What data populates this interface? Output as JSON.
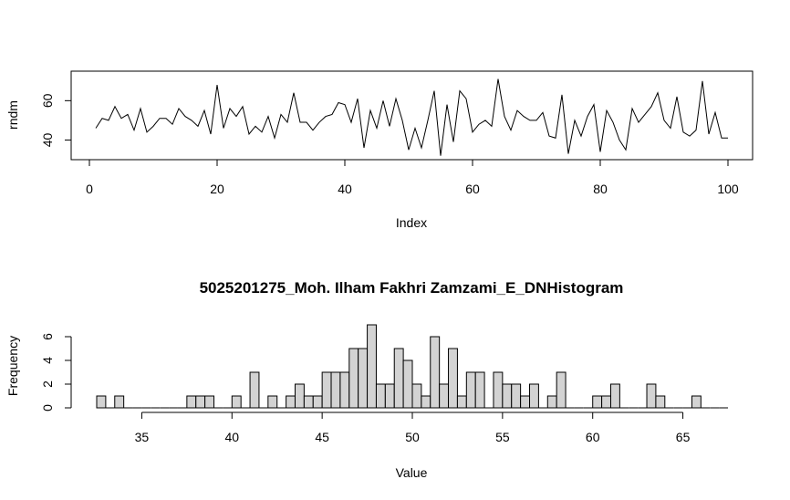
{
  "chart_data": [
    {
      "type": "line",
      "title": "",
      "xlabel": "Index",
      "ylabel": "rndm",
      "xlim": [
        0,
        100
      ],
      "ylim": [
        30,
        75
      ],
      "xticks": [
        0,
        20,
        40,
        60,
        80,
        100
      ],
      "yticks": [
        40,
        60
      ],
      "x": [
        1,
        2,
        3,
        4,
        5,
        6,
        7,
        8,
        9,
        10,
        11,
        12,
        13,
        14,
        15,
        16,
        17,
        18,
        19,
        20,
        21,
        22,
        23,
        24,
        25,
        26,
        27,
        28,
        29,
        30,
        31,
        32,
        33,
        34,
        35,
        36,
        37,
        38,
        39,
        40,
        41,
        42,
        43,
        44,
        45,
        46,
        47,
        48,
        49,
        50,
        51,
        52,
        53,
        54,
        55,
        56,
        57,
        58,
        59,
        60,
        61,
        62,
        63,
        64,
        65,
        66,
        67,
        68,
        69,
        70,
        71,
        72,
        73,
        74,
        75,
        76,
        77,
        78,
        79,
        80,
        81,
        82,
        83,
        84,
        85,
        86,
        87,
        88,
        89,
        90,
        91,
        92,
        93,
        94,
        95,
        96,
        97,
        98,
        99,
        100
      ],
      "series": [
        {
          "values": [
            46,
            51,
            50,
            57,
            51,
            53,
            45,
            56,
            44,
            47,
            51,
            51,
            48,
            56,
            52,
            50,
            47,
            55,
            43,
            68,
            46,
            56,
            52,
            57,
            43,
            47,
            44,
            52,
            41,
            53,
            49,
            64,
            49,
            49,
            45,
            49,
            52,
            53,
            59,
            58,
            49,
            61,
            36,
            55,
            46,
            60,
            47,
            61,
            50,
            35,
            46,
            36,
            50,
            65,
            32,
            58,
            39,
            65,
            61,
            44,
            48,
            50,
            47,
            71,
            52,
            45,
            55,
            52,
            50,
            50,
            54,
            42,
            41,
            63,
            33,
            50,
            42,
            52,
            58,
            34,
            55,
            49,
            40,
            35,
            56,
            49,
            53,
            57,
            64,
            50,
            46,
            62,
            44,
            42,
            45,
            70,
            43,
            54,
            41,
            41
          ]
        }
      ]
    },
    {
      "type": "bar",
      "title": "5025201275_Moh. Ilham Fakhri Zamzami_E_DNHistogram",
      "xlabel": "Value",
      "ylabel": "Frequency",
      "xlim": [
        32.5,
        67.5
      ],
      "ylim": [
        0,
        7
      ],
      "xticks": [
        35,
        40,
        45,
        50,
        55,
        60,
        65
      ],
      "yticks": [
        0,
        2,
        4,
        6
      ],
      "bin_start": 32.5,
      "bin_width": 0.5,
      "values": [
        1,
        0,
        1,
        0,
        0,
        0,
        0,
        0,
        0,
        0,
        1,
        1,
        1,
        0,
        0,
        1,
        0,
        3,
        0,
        1,
        0,
        1,
        2,
        1,
        1,
        3,
        3,
        3,
        5,
        5,
        7,
        2,
        2,
        5,
        4,
        2,
        1,
        6,
        2,
        5,
        1,
        3,
        3,
        0,
        3,
        2,
        2,
        1,
        2,
        0,
        1,
        3,
        0,
        0,
        0,
        1,
        1,
        2,
        0,
        0,
        0,
        2,
        1,
        0,
        0,
        0,
        1,
        0,
        0,
        0
      ]
    }
  ]
}
